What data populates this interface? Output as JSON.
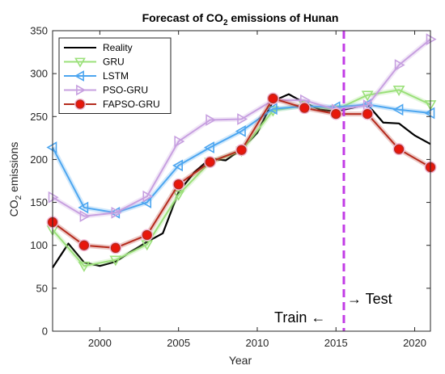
{
  "chart_data": {
    "type": "line",
    "title_main": "Forecast of CO",
    "title_sub": "2",
    "title_rest": " emissions of Hunan",
    "xlabel": "Year",
    "ylabel_main": "CO",
    "ylabel_sub": "2",
    "ylabel_rest": " emissions",
    "xlim": [
      1997,
      2021
    ],
    "ylim": [
      0,
      350
    ],
    "xticks": [
      2000,
      2005,
      2010,
      2015,
      2020
    ],
    "yticks": [
      0,
      50,
      100,
      150,
      200,
      250,
      300,
      350
    ],
    "grid": false,
    "legend_position": "top-left",
    "split_year": 2015.5,
    "annotations": {
      "train": "Train ←",
      "test": "→ Test"
    },
    "series": [
      {
        "name": "Reality",
        "color": "#000000",
        "marker": "none",
        "x": [
          1997,
          1998,
          1999,
          2000,
          2001,
          2002,
          2003,
          2004,
          2005,
          2006,
          2007,
          2008,
          2009,
          2010,
          2011,
          2012,
          2013,
          2014,
          2015,
          2016,
          2017,
          2018,
          2019,
          2020,
          2021
        ],
        "y": [
          74,
          102,
          80,
          76,
          81,
          93,
          104,
          114,
          162,
          185,
          201,
          199,
          212,
          231,
          268,
          276,
          266,
          258,
          256,
          260,
          264,
          243,
          242,
          228,
          218
        ]
      },
      {
        "name": "GRU",
        "color": "#9BE07A",
        "marker": "triangle-down",
        "x": [
          1997,
          1999,
          2001,
          2003,
          2005,
          2007,
          2009,
          2011,
          2013,
          2015,
          2017,
          2019,
          2021
        ],
        "y": [
          118,
          76,
          83,
          101,
          159,
          197,
          210,
          257,
          263,
          258,
          275,
          281,
          264
        ]
      },
      {
        "name": "LSTM",
        "color": "#4DA6F0",
        "marker": "triangle-left",
        "x": [
          1997,
          1999,
          2001,
          2003,
          2005,
          2007,
          2009,
          2011,
          2013,
          2015,
          2017,
          2019,
          2021
        ],
        "y": [
          214,
          144,
          138,
          150,
          193,
          214,
          233,
          259,
          262,
          261,
          264,
          258,
          254
        ]
      },
      {
        "name": "PSO-GRU",
        "color": "#C7A0E0",
        "marker": "triangle-right",
        "x": [
          1997,
          1999,
          2001,
          2003,
          2005,
          2007,
          2009,
          2011,
          2013,
          2015,
          2017,
          2019,
          2021
        ],
        "y": [
          156,
          134,
          138,
          157,
          221,
          246,
          247,
          269,
          269,
          258,
          263,
          310,
          340
        ]
      },
      {
        "name": "FAPSO-GRU",
        "color": "#B52C1E",
        "marker": "circle",
        "x": [
          1997,
          1999,
          2001,
          2003,
          2005,
          2007,
          2009,
          2011,
          2013,
          2015,
          2017,
          2019,
          2021
        ],
        "y": [
          127,
          100,
          97,
          112,
          171,
          197,
          211,
          271,
          260,
          253,
          253,
          212,
          191
        ]
      }
    ],
    "colors": {
      "split_line": "#C23CE6",
      "circle_fill": "#E8160C",
      "circle_halo": "#F2B8D6"
    }
  }
}
